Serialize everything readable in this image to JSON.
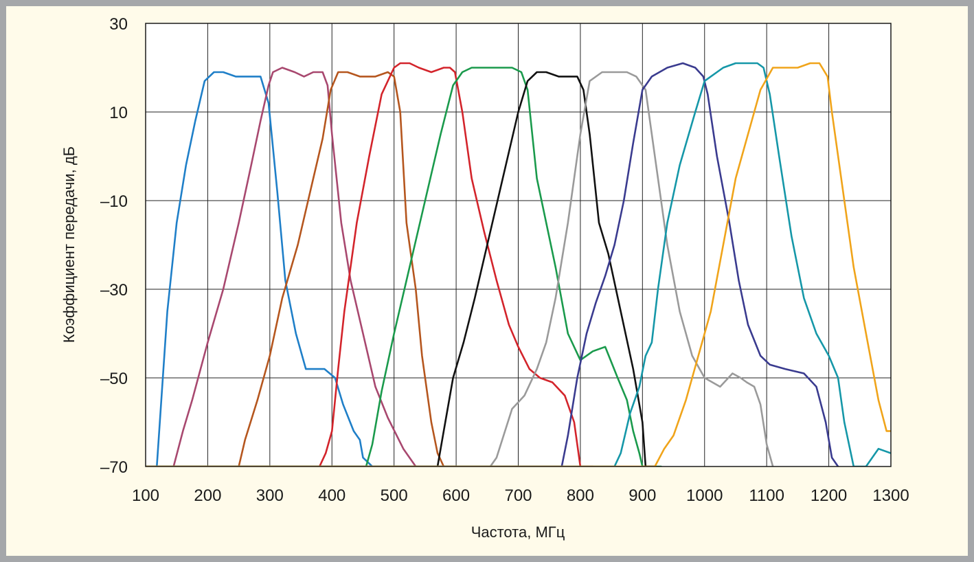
{
  "chart_data": {
    "type": "line",
    "title": "",
    "xlabel": "Частота, МГц",
    "ylabel": "Коэффициент передачи, дБ",
    "xlim": [
      100,
      1300
    ],
    "ylim": [
      -70,
      30
    ],
    "xticks": [
      100,
      200,
      300,
      400,
      500,
      600,
      700,
      800,
      900,
      1000,
      1100,
      1200,
      1300
    ],
    "yticks": [
      30,
      10,
      -10,
      -30,
      -50,
      -70
    ],
    "ytick_labels": [
      "30",
      "10",
      "–10",
      "–30",
      "–50",
      "–70"
    ],
    "grid": true,
    "legend": "none",
    "series": [
      {
        "color": "#1f7fc8",
        "x": [
          100,
          118,
          135,
          150,
          165,
          180,
          195,
          210,
          225,
          245,
          265,
          285,
          298,
          312,
          325,
          342,
          358,
          372,
          388,
          405,
          418,
          435,
          445,
          450,
          465,
          480,
          500
        ],
        "y": [
          -70,
          -70,
          -35,
          -15,
          -2,
          8,
          17,
          19,
          19,
          18,
          18,
          18,
          12,
          -8,
          -28,
          -40,
          -48,
          -48,
          -48,
          -50,
          -56,
          -62,
          -64,
          -68,
          -70,
          -70,
          -70
        ]
      },
      {
        "color": "#a8486f",
        "x": [
          100,
          145,
          160,
          175,
          200,
          225,
          250,
          270,
          285,
          298,
          305,
          320,
          340,
          355,
          370,
          385,
          393,
          400,
          415,
          430,
          450,
          470,
          490,
          515,
          535,
          550,
          570,
          600
        ],
        "y": [
          -70,
          -70,
          -62,
          -55,
          -42,
          -30,
          -15,
          -2,
          8,
          16,
          19,
          20,
          19,
          18,
          19,
          19,
          16,
          5,
          -15,
          -28,
          -40,
          -52,
          -59,
          -66,
          -70,
          -70,
          -70,
          -70
        ]
      },
      {
        "color": "#b5561e",
        "x": [
          100,
          250,
          260,
          280,
          300,
          320,
          345,
          370,
          385,
          398,
          410,
          425,
          445,
          470,
          490,
          500,
          510,
          520,
          535,
          545,
          560,
          570,
          580,
          600
        ],
        "y": [
          -70,
          -70,
          -64,
          -55,
          -45,
          -32,
          -20,
          -5,
          4,
          15,
          19,
          19,
          18,
          18,
          19,
          18,
          10,
          -15,
          -30,
          -45,
          -60,
          -67,
          -70,
          -70
        ]
      },
      {
        "color": "#d3242b",
        "x": [
          100,
          380,
          390,
          400,
          410,
          420,
          440,
          460,
          480,
          500,
          510,
          525,
          540,
          560,
          580,
          590,
          598,
          610,
          625,
          645,
          665,
          685,
          700,
          718,
          735,
          755,
          775,
          790,
          800,
          820
        ],
        "y": [
          -70,
          -70,
          -67,
          -62,
          -48,
          -35,
          -15,
          0,
          14,
          20,
          21,
          21,
          20,
          19,
          20,
          20,
          19,
          10,
          -5,
          -17,
          -28,
          -38,
          -43,
          -48,
          -50,
          -51,
          -54,
          -60,
          -70,
          -70
        ]
      },
      {
        "color": "#1a9a4c",
        "x": [
          100,
          455,
          465,
          480,
          500,
          520,
          550,
          575,
          595,
          610,
          625,
          660,
          690,
          705,
          715,
          730,
          760,
          780,
          800,
          820,
          840,
          860,
          875,
          885,
          895,
          900,
          910,
          930
        ],
        "y": [
          -70,
          -70,
          -65,
          -53,
          -40,
          -28,
          -10,
          5,
          16,
          19,
          20,
          20,
          20,
          19,
          15,
          -5,
          -25,
          -40,
          -46,
          -44,
          -43,
          -50,
          -55,
          -62,
          -67,
          -70,
          -70,
          -70
        ]
      },
      {
        "color": "#111111",
        "x": [
          100,
          570,
          580,
          595,
          612,
          630,
          650,
          675,
          700,
          715,
          730,
          745,
          765,
          785,
          795,
          805,
          815,
          830,
          845,
          865,
          885,
          900,
          905,
          920
        ],
        "y": [
          -70,
          -70,
          -62,
          -50,
          -42,
          -32,
          -20,
          -5,
          10,
          17,
          19,
          19,
          18,
          18,
          18,
          15,
          5,
          -15,
          -22,
          -35,
          -48,
          -60,
          -70,
          -70
        ]
      },
      {
        "color": "#9a9a9a",
        "x": [
          100,
          655,
          665,
          690,
          710,
          730,
          745,
          760,
          780,
          800,
          815,
          835,
          855,
          875,
          890,
          905,
          920,
          940,
          960,
          980,
          1000,
          1025,
          1045,
          1058,
          1068,
          1080,
          1090,
          1100,
          1110
        ],
        "y": [
          -70,
          -70,
          -68,
          -57,
          -54,
          -48,
          -42,
          -32,
          -15,
          5,
          17,
          19,
          19,
          19,
          18,
          15,
          0,
          -20,
          -35,
          -45,
          -50,
          -52,
          -49,
          -50,
          -51,
          -52,
          -56,
          -65,
          -70
        ]
      },
      {
        "color": "#3a3b8f",
        "x": [
          100,
          770,
          780,
          795,
          810,
          825,
          840,
          855,
          870,
          885,
          900,
          915,
          940,
          965,
          985,
          998,
          1005,
          1020,
          1040,
          1055,
          1070,
          1090,
          1105,
          1130,
          1160,
          1180,
          1195,
          1205,
          1215
        ],
        "y": [
          -70,
          -70,
          -63,
          -50,
          -40,
          -33,
          -27,
          -20,
          -10,
          3,
          15,
          18,
          20,
          21,
          20,
          18,
          14,
          0,
          -15,
          -28,
          -38,
          -45,
          -47,
          -48,
          -49,
          -52,
          -60,
          -68,
          -70
        ]
      },
      {
        "color": "#1597a8",
        "x": [
          100,
          855,
          865,
          880,
          895,
          905,
          915,
          925,
          940,
          960,
          985,
          1000,
          1010,
          1030,
          1050,
          1070,
          1085,
          1095,
          1105,
          1120,
          1140,
          1160,
          1180,
          1200,
          1215,
          1225,
          1240,
          1260,
          1280,
          1300
        ],
        "y": [
          -70,
          -70,
          -67,
          -58,
          -52,
          -45,
          -42,
          -30,
          -15,
          -2,
          10,
          17,
          18,
          20,
          21,
          21,
          21,
          20,
          14,
          0,
          -18,
          -32,
          -40,
          -45,
          -50,
          -60,
          -70,
          -70,
          -66,
          -67
        ]
      },
      {
        "color": "#f0a41a",
        "x": [
          100,
          920,
          935,
          950,
          970,
          990,
          1010,
          1030,
          1050,
          1070,
          1090,
          1102,
          1110,
          1130,
          1150,
          1170,
          1185,
          1198,
          1205,
          1220,
          1240,
          1260,
          1280,
          1293,
          1300
        ],
        "y": [
          -70,
          -70,
          -66,
          -63,
          -55,
          -45,
          -35,
          -20,
          -5,
          5,
          15,
          18,
          20,
          20,
          20,
          21,
          21,
          18,
          10,
          -5,
          -25,
          -40,
          -55,
          -62,
          -62
        ]
      }
    ]
  }
}
